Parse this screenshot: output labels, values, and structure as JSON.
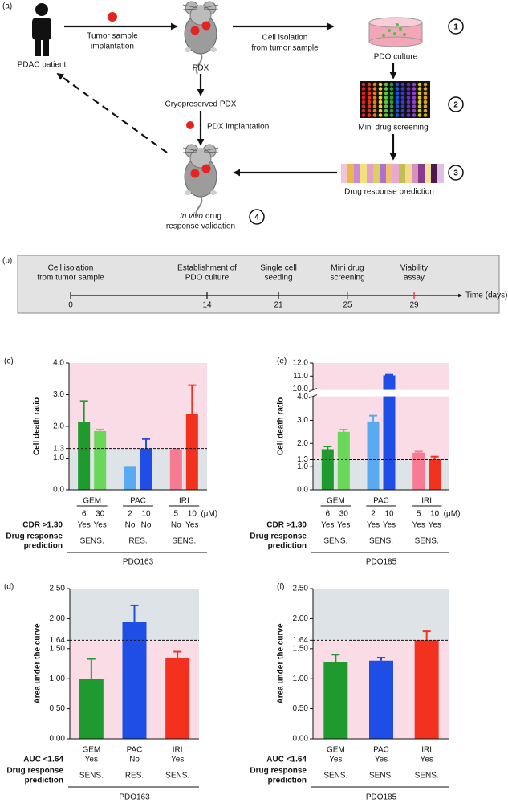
{
  "figure_a": {
    "panel": "(a)",
    "patient": "PDAC patient",
    "implantation": [
      "Tumor sample",
      "implantation"
    ],
    "pdx": "PDX",
    "cell_isolation": [
      "Cell isolation",
      "from tumor sample"
    ],
    "pdo_culture": "PDO culture",
    "cryopreserved": "Cryopreserved PDX",
    "pdx_implantation": "PDX implantation",
    "screening": "Mini drug screening",
    "prediction": "Drug response prediction",
    "validation": {
      "italic": "In vivo",
      "line1": "drug",
      "line2": "response validation"
    },
    "steps": [
      "1",
      "2",
      "3",
      "4"
    ]
  },
  "timeline": {
    "panel": "(b)",
    "axis_label": "Time (days)",
    "highlight_color": "#e8202a",
    "events": [
      {
        "day": 0,
        "label": [
          "Cell isolation",
          "from tumor sample"
        ],
        "highlight": false
      },
      {
        "day": 14,
        "label": [
          "Establishment of",
          "PDO culture"
        ],
        "highlight": false
      },
      {
        "day": 21,
        "label": [
          "Single cell",
          "seeding"
        ],
        "highlight": false
      },
      {
        "day": 25,
        "label": [
          "Mini drug",
          "screening"
        ],
        "highlight": true
      },
      {
        "day": 29,
        "label": [
          "Viability",
          "assay"
        ],
        "highlight": true
      }
    ]
  },
  "chart_data": [
    {
      "type": "bar",
      "panel": "(c)",
      "y_label": "Cell death ratio",
      "ylim": [
        0,
        4
      ],
      "yticks": [
        {
          "value": 0,
          "label": "0.0"
        },
        {
          "value": 1,
          "label": "1.0"
        },
        1.3,
        {
          "value": 2,
          "label": "2.0"
        },
        {
          "value": 3,
          "label": "3.0"
        },
        {
          "value": 4,
          "label": "4.0"
        }
      ],
      "threshold": 1.3,
      "above_color": "#fadce6",
      "below_color": "#dde3e6",
      "groups": [
        "GEM",
        "PAC",
        "IRI"
      ],
      "doses": [
        6,
        30,
        2,
        10,
        5,
        10
      ],
      "dose_unit": "(μM)",
      "values": [
        2.15,
        1.85,
        0.75,
        1.3,
        1.25,
        2.4
      ],
      "errors": [
        0.65,
        0.05,
        null,
        0.3,
        0.03,
        0.9
      ],
      "colors": [
        "#1e9a2e",
        "#6ad65a",
        "#5aaaf2",
        "#1f4ee6",
        "#f77b93",
        "#f2321e"
      ],
      "criterion_label": "CDR >1.30",
      "criterion": [
        "Yes",
        "Yes",
        "No",
        "No",
        "No",
        "Yes"
      ],
      "prediction_label": [
        "Drug response",
        "prediction"
      ],
      "predictions": [
        "SENS.",
        "RES.",
        "SENS."
      ],
      "sample": "PDO163"
    },
    {
      "type": "bar",
      "panel": "(e)",
      "y_label": "Cell death ratio",
      "ylim": [
        0,
        12
      ],
      "axis_break": [
        4,
        10
      ],
      "yticks": [
        {
          "value": 0,
          "label": "0.0"
        },
        {
          "value": 1,
          "label": "1.0"
        },
        1.3,
        {
          "value": 2,
          "label": "2.0"
        },
        {
          "value": 3,
          "label": "3.0"
        },
        {
          "value": 4,
          "label": "4.0"
        },
        {
          "value": 10,
          "label": "10.0"
        },
        {
          "value": 11,
          "label": "11.0"
        },
        {
          "value": 12,
          "label": "12.0"
        }
      ],
      "threshold": 1.3,
      "above_color": "#fadce6",
      "below_color": "#dde3e6",
      "groups": [
        "GEM",
        "PAC",
        "IRI"
      ],
      "doses": [
        6,
        30,
        2,
        10,
        5,
        10
      ],
      "dose_unit": "(μM)",
      "values": [
        1.75,
        2.5,
        2.95,
        11.05,
        1.6,
        1.35
      ],
      "errors": [
        0.12,
        0.1,
        0.25,
        0.05,
        0.05,
        0.08
      ],
      "colors": [
        "#1e9a2e",
        "#6ad65a",
        "#5aaaf2",
        "#1f4ee6",
        "#f77b93",
        "#f2321e"
      ],
      "criterion_label": "CDR >1.30",
      "criterion": [
        "Yes",
        "Yes",
        "Yes",
        "Yes",
        "Yes",
        "Yes"
      ],
      "prediction_label": [
        "Drug response",
        "prediction"
      ],
      "predictions": [
        "SENS.",
        "SENS.",
        "SENS."
      ],
      "sample": "PDO185"
    },
    {
      "type": "bar",
      "panel": "(d)",
      "y_label": "Area under the curve",
      "ylim": [
        0,
        2.5
      ],
      "yticks": [
        {
          "value": 0,
          "label": "0.00"
        },
        {
          "value": 0.5,
          "label": "0.50"
        },
        {
          "value": 1,
          "label": "1.00"
        },
        {
          "value": 1.5,
          "label": "1.50"
        },
        1.64,
        {
          "value": 2,
          "label": "2.00"
        },
        {
          "value": 2.5,
          "label": "2.50"
        }
      ],
      "threshold": 1.64,
      "above_color": "#dde3e6",
      "below_color": "#fadce6",
      "categories": [
        "GEM",
        "PAC",
        "IRI"
      ],
      "values": [
        1.0,
        1.95,
        1.35
      ],
      "errors": [
        0.33,
        0.27,
        0.1
      ],
      "colors": [
        "#1e9a2e",
        "#1f4ee6",
        "#f2321e"
      ],
      "criterion_label": "AUC <1.64",
      "criterion": [
        "Yes",
        "No",
        "Yes"
      ],
      "prediction_label": [
        "Drug response",
        "prediction"
      ],
      "predictions": [
        "SENS.",
        "RES.",
        "SENS."
      ],
      "sample": "PDO163"
    },
    {
      "type": "bar",
      "panel": "(f)",
      "y_label": "Area under the curve",
      "ylim": [
        0,
        2.5
      ],
      "yticks": [
        {
          "value": 0,
          "label": "0.00"
        },
        {
          "value": 0.5,
          "label": "0.50"
        },
        {
          "value": 1,
          "label": "1.00"
        },
        {
          "value": 1.5,
          "label": "1.50"
        },
        1.64,
        {
          "value": 2,
          "label": "2.00"
        },
        {
          "value": 2.5,
          "label": "2.50"
        }
      ],
      "threshold": 1.64,
      "above_color": "#dde3e6",
      "below_color": "#fadce6",
      "categories": [
        "GEM",
        "PAC",
        "IRI"
      ],
      "values": [
        1.28,
        1.3,
        1.64
      ],
      "errors": [
        0.12,
        0.05,
        0.15
      ],
      "colors": [
        "#1e9a2e",
        "#1f4ee6",
        "#f2321e"
      ],
      "criterion_label": "AUC <1.64",
      "criterion": [
        "Yes",
        "Yes",
        "Yes"
      ],
      "prediction_label": [
        "Drug response",
        "prediction"
      ],
      "predictions": [
        "SENS.",
        "SENS.",
        "SENS."
      ],
      "sample": "PDO185"
    }
  ]
}
